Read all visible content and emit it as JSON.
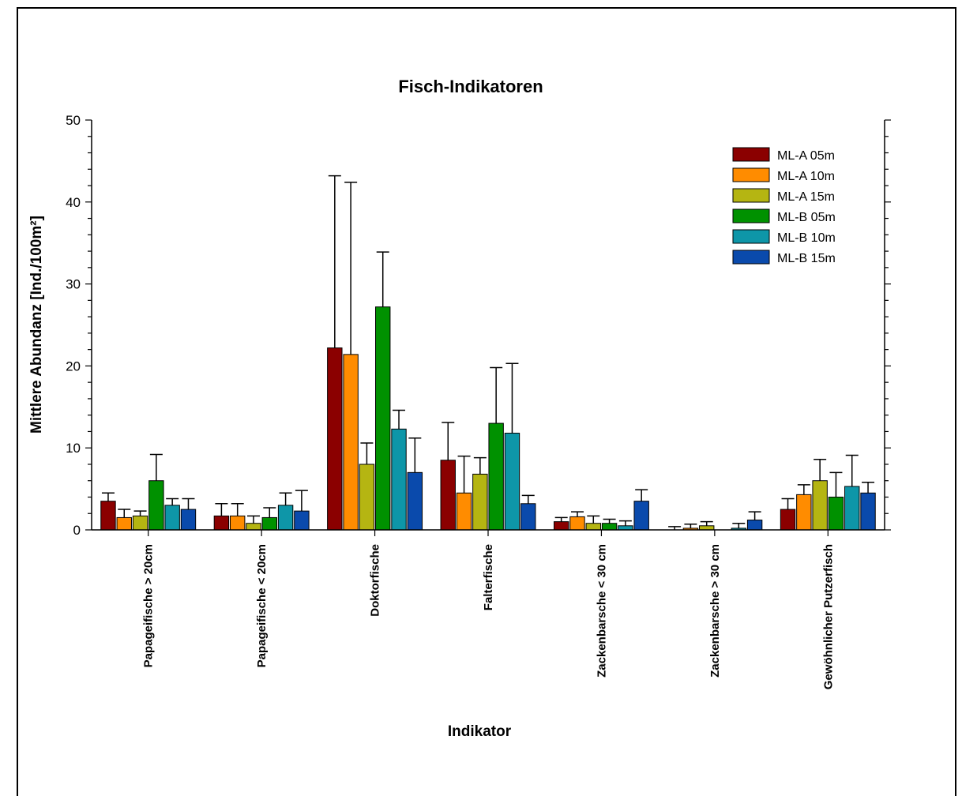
{
  "chart_data": {
    "type": "bar",
    "title": "Fisch-Indikatoren",
    "xlabel": "Indikator",
    "ylabel": "Mittlere Abundanz [Ind./100m²]",
    "ylim": [
      0,
      50
    ],
    "yticks": [
      "0",
      "10",
      "20",
      "30",
      "40",
      "50"
    ],
    "legend_position": "top-right",
    "grid": false,
    "categories": [
      "Papageifische > 20cm",
      "Papageifische < 20cm",
      "Doktorfische",
      "Falterfische",
      "Zackenbarsche < 30 cm",
      "Zackenbarsche > 30 cm",
      "Gewöhnlicher Putzerfisch"
    ],
    "series": [
      {
        "name": "ML-A 05m",
        "color": "#8B0000",
        "values": [
          3.5,
          1.7,
          22.2,
          8.5,
          1.0,
          0.0,
          2.5
        ],
        "errors": [
          1.0,
          1.5,
          21.0,
          4.6,
          0.5,
          0.4,
          1.3
        ]
      },
      {
        "name": "ML-A 10m",
        "color": "#FF8C00",
        "values": [
          1.5,
          1.7,
          21.4,
          4.5,
          1.6,
          0.2,
          4.3
        ],
        "errors": [
          1.0,
          1.5,
          21.0,
          4.5,
          0.6,
          0.5,
          1.2
        ]
      },
      {
        "name": "ML-A 15m",
        "color": "#B5B512",
        "values": [
          1.7,
          0.8,
          8.0,
          6.8,
          0.8,
          0.5,
          6.0
        ],
        "errors": [
          0.6,
          0.9,
          2.6,
          2.0,
          0.9,
          0.5,
          2.6
        ]
      },
      {
        "name": "ML-B 05m",
        "color": "#009100",
        "values": [
          6.0,
          1.5,
          27.2,
          13.0,
          0.8,
          0.0,
          4.0
        ],
        "errors": [
          3.2,
          1.2,
          6.7,
          6.8,
          0.5,
          0.0,
          3.0
        ]
      },
      {
        "name": "ML-B 10m",
        "color": "#0E96A8",
        "values": [
          3.0,
          3.0,
          12.3,
          11.8,
          0.5,
          0.2,
          5.3
        ],
        "errors": [
          0.8,
          1.5,
          2.3,
          8.5,
          0.6,
          0.6,
          3.8
        ]
      },
      {
        "name": "ML-B 15m",
        "color": "#0A4AAC",
        "values": [
          2.5,
          2.3,
          7.0,
          3.2,
          3.5,
          1.2,
          4.5
        ],
        "errors": [
          1.3,
          2.5,
          4.2,
          1.0,
          1.4,
          1.0,
          1.3
        ]
      }
    ]
  }
}
